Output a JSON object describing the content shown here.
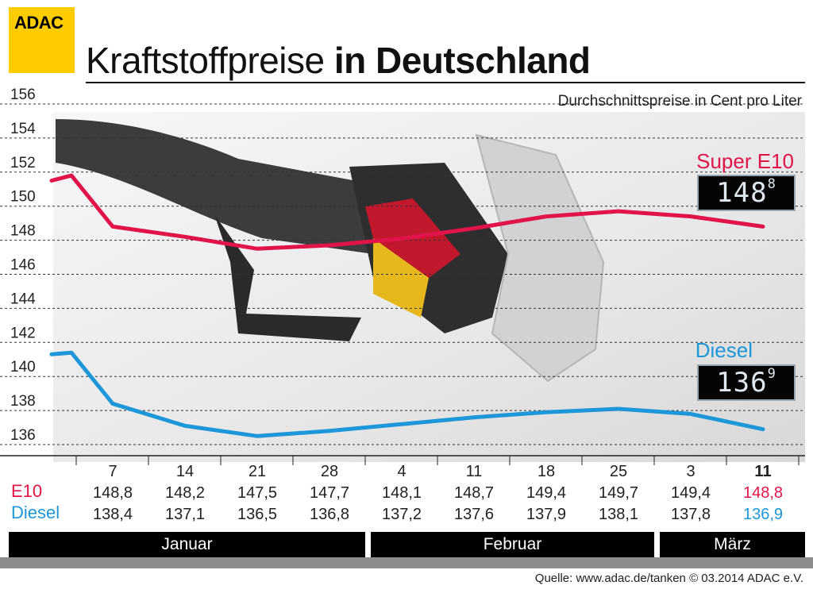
{
  "logo_text": "ADAC",
  "title_light": "Kraftstoffpreise",
  "title_bold": "in Deutschland",
  "subtitle": "Durchschnittspreise in Cent pro Liter",
  "row_labels": {
    "e10": "E10",
    "diesel": "Diesel"
  },
  "months": [
    "Januar",
    "Februar",
    "März"
  ],
  "source": "Quelle: www.adac.de/tanken   © 03.2014  ADAC e.V.",
  "display_e10": {
    "main": "148",
    "small": "8"
  },
  "display_diesel": {
    "main": "136",
    "small": "9"
  },
  "colors": {
    "e10": "#e0144a",
    "diesel": "#1d97d8",
    "logo": "#ffcc00"
  },
  "chart_data": {
    "type": "line",
    "title": "Kraftstoffpreise in Deutschland",
    "subtitle": "Durchschnittspreise in Cent pro Liter",
    "x": [
      "7",
      "14",
      "21",
      "28",
      "4",
      "11",
      "18",
      "25",
      "3",
      "11"
    ],
    "months": [
      "Januar",
      "Januar",
      "Januar",
      "Januar",
      "Februar",
      "Februar",
      "Februar",
      "Februar",
      "März",
      "März"
    ],
    "ylim": [
      136,
      156
    ],
    "yticks": [
      136,
      138,
      140,
      142,
      144,
      146,
      148,
      150,
      152,
      154,
      156
    ],
    "grid": true,
    "series": [
      {
        "name": "Super E10",
        "key": "e10",
        "start_values": [
          151.5,
          151.8
        ],
        "values": [
          148.8,
          148.2,
          147.5,
          147.7,
          148.1,
          148.7,
          149.4,
          149.7,
          149.4,
          148.8
        ],
        "labels": [
          "148,8",
          "148,2",
          "147,5",
          "147,7",
          "148,1",
          "148,7",
          "149,4",
          "149,7",
          "149,4",
          "148,8"
        ]
      },
      {
        "name": "Diesel",
        "key": "diesel",
        "start_values": [
          141.3,
          141.4
        ],
        "values": [
          138.4,
          137.1,
          136.5,
          136.8,
          137.2,
          137.6,
          137.9,
          138.1,
          137.8,
          136.9
        ],
        "labels": [
          "138,4",
          "137,1",
          "136,5",
          "136,8",
          "137,2",
          "137,6",
          "137,9",
          "138,1",
          "137,8",
          "136,9"
        ]
      }
    ]
  }
}
